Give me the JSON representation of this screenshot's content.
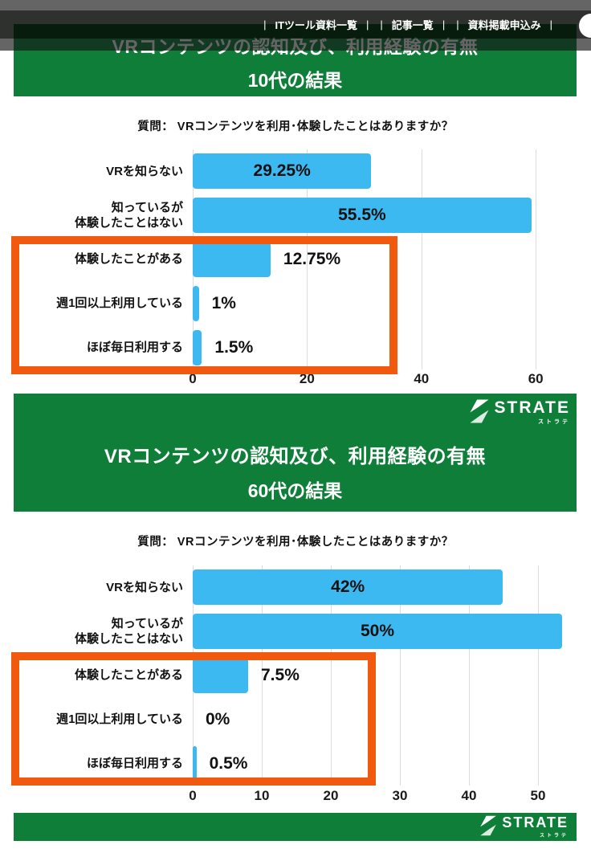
{
  "nav": {
    "separator": "|",
    "items": [
      {
        "label": "ITツール資料一覧"
      },
      {
        "label": "記事一覧"
      },
      {
        "label": "資料掲載申込み"
      }
    ]
  },
  "brand": {
    "name": "STRATE",
    "kana": "ストラテ"
  },
  "colors": {
    "banner_green": "#0e7e38",
    "bar_blue": "#3db9f2",
    "highlight_orange": "#f1590f"
  },
  "sections": [
    {
      "title": "VRコンテンツの認知及び、利用経験の有無",
      "subtitle": "10代の結果",
      "question": "質問： VRコンテンツを利用･体験したことはありますか？"
    },
    {
      "title": "VRコンテンツの認知及び、利用経験の有無",
      "subtitle": "60代の結果",
      "question": "質問： VRコンテンツを利用･体験したことはありますか？"
    }
  ],
  "chart_data": [
    {
      "type": "bar",
      "orientation": "horizontal",
      "title": "VRコンテンツの認知及び、利用経験の有無 10代の結果",
      "question": "質問： VRコンテンツを利用･体験したことはありますか？",
      "categories": [
        "VRを知らない",
        "知っているが\n体験したことはない",
        "体験したことがある",
        "週1回以上利用している",
        "ほぼ毎日利用する"
      ],
      "values": [
        29.25,
        55.5,
        12.75,
        1,
        1.5
      ],
      "value_labels": [
        "29.25%",
        "55.5%",
        "12.75%",
        "1%",
        "1.5%"
      ],
      "label_inside": [
        true,
        true,
        false,
        false,
        false
      ],
      "xticks": [
        0,
        20,
        40,
        60
      ],
      "xlim": [
        0,
        60
      ],
      "grid": true,
      "legend": "none",
      "bar_color": "#3db9f2",
      "highlight_box_rows": [
        2,
        3,
        4
      ]
    },
    {
      "type": "bar",
      "orientation": "horizontal",
      "title": "VRコンテンツの認知及び、利用経験の有無 60代の結果",
      "question": "質問： VRコンテンツを利用･体験したことはありますか？",
      "categories": [
        "VRを知らない",
        "知っているが\n体験したことはない",
        "体験したことがある",
        "週1回以上利用している",
        "ほぼ毎日利用する"
      ],
      "values": [
        42,
        50,
        7.5,
        0,
        0.5
      ],
      "value_labels": [
        "42%",
        "50%",
        "7.5%",
        "0%",
        "0.5%"
      ],
      "label_inside": [
        true,
        true,
        false,
        false,
        false
      ],
      "xticks": [
        0,
        10,
        20,
        30,
        40,
        50
      ],
      "xlim": [
        0,
        50
      ],
      "grid": true,
      "legend": "none",
      "bar_color": "#3db9f2",
      "highlight_box_rows": [
        2,
        3,
        4
      ]
    }
  ]
}
